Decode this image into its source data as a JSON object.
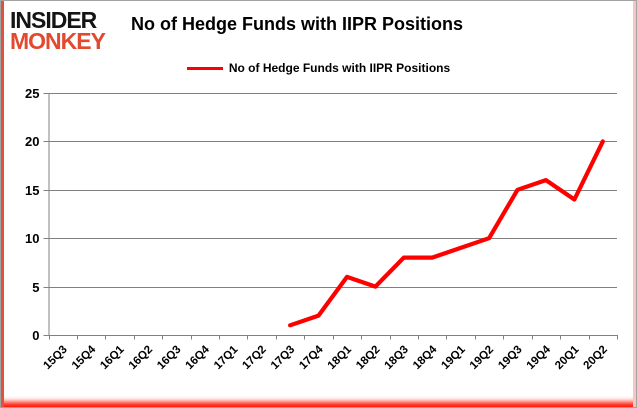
{
  "branding": {
    "line1": "INSIDER",
    "line2": "MONKEY"
  },
  "title": "No of Hedge Funds with IIPR Positions",
  "legend": {
    "label": "No of Hedge Funds with IIPR Positions"
  },
  "colors": {
    "series_line": "#ff0000",
    "logo_accent": "#e2492f",
    "gridline": "#808080",
    "axis": "#808080",
    "text": "#000000",
    "frame_left_stripe": "#e0523c",
    "frame_right_stripe": "#f4c7c2",
    "frame_bottom_glow": "#ff1400",
    "frame_border": "#a3a3a3"
  },
  "chart_data": {
    "type": "line",
    "title": "No of Hedge Funds with IIPR Positions",
    "categories": [
      "15Q3",
      "15Q4",
      "16Q1",
      "16Q2",
      "16Q3",
      "16Q4",
      "17Q1",
      "17Q2",
      "17Q3",
      "17Q4",
      "18Q1",
      "18Q2",
      "18Q3",
      "18Q4",
      "19Q1",
      "19Q2",
      "19Q3",
      "19Q4",
      "20Q1",
      "20Q2"
    ],
    "series": [
      {
        "name": "No of Hedge Funds with IIPR Positions",
        "color": "#ff0000",
        "values": [
          null,
          null,
          null,
          null,
          null,
          null,
          null,
          null,
          1,
          2,
          6,
          5,
          8,
          8,
          9,
          10,
          15,
          16,
          14,
          20
        ]
      }
    ],
    "ylim": [
      0,
      25
    ],
    "yticks": [
      0,
      5,
      10,
      15,
      20,
      25
    ],
    "xlabel": "",
    "ylabel": "",
    "grid": true,
    "legend_position": "top-center"
  }
}
